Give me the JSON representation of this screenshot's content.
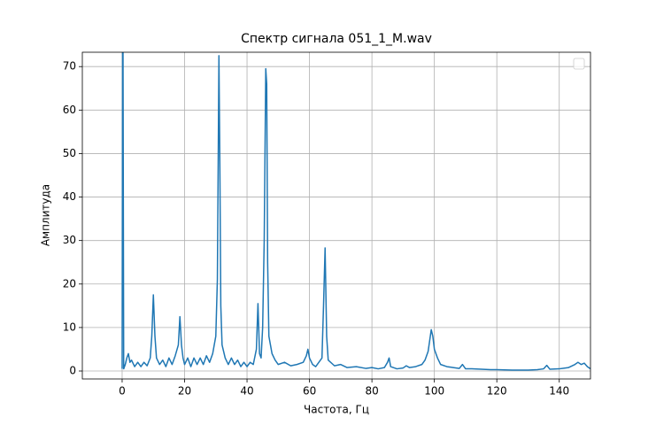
{
  "chart_data": {
    "type": "line",
    "title": "Спектр сигнала 051_1_M.wav",
    "xlabel": "Частота, Гц",
    "ylabel": "Амплитуда",
    "x": [
      0,
      0.2,
      0.5,
      1,
      1.5,
      2,
      2.5,
      3,
      4,
      5,
      6,
      7,
      8,
      9,
      9.5,
      10,
      10.5,
      11,
      12,
      13,
      14,
      15,
      16,
      17,
      18,
      18.5,
      19,
      19.5,
      20,
      21,
      22,
      23,
      24,
      25,
      26,
      27,
      28,
      29,
      30,
      30.5,
      31,
      31.3,
      31.6,
      32,
      33,
      34,
      35,
      36,
      37,
      38,
      39,
      40,
      41,
      42,
      43,
      43.5,
      44,
      44.5,
      45,
      45.5,
      46,
      46.3,
      46.6,
      47,
      48,
      49,
      50,
      52,
      54,
      56,
      58,
      59,
      59.5,
      60,
      61,
      62,
      64,
      64.5,
      65,
      65.5,
      66,
      68,
      70,
      72,
      75,
      78,
      80,
      82,
      84,
      85,
      85.5,
      86,
      88,
      90,
      91,
      92,
      94,
      96,
      97,
      98,
      99,
      99.5,
      100,
      101,
      102,
      104,
      106,
      108,
      109,
      110,
      112,
      115,
      118,
      120,
      125,
      130,
      133,
      135,
      136,
      137,
      140,
      143,
      145,
      146,
      147,
      148,
      149,
      150
    ],
    "series": [
      {
        "color": "#1f77b4",
        "values": [
          0.5,
          100,
          0.5,
          1.5,
          3,
          4,
          2,
          2.5,
          1,
          2,
          1,
          2,
          1.2,
          3,
          8,
          17.5,
          8,
          3,
          1.5,
          2.5,
          1,
          3,
          1.5,
          3.5,
          6,
          12.5,
          6,
          3,
          1.5,
          3,
          1,
          3,
          1.5,
          3,
          1.5,
          3.5,
          2,
          4,
          8,
          21,
          72.5,
          47,
          15,
          6,
          3,
          1.5,
          3,
          1.5,
          2.5,
          1,
          2,
          1,
          2,
          1.5,
          5,
          15.5,
          4,
          3,
          10,
          30,
          69.5,
          66,
          25,
          8,
          4,
          2.5,
          1.5,
          2,
          1.2,
          1.5,
          2,
          3.5,
          5,
          3,
          1.5,
          1,
          3,
          15,
          28.3,
          8,
          2.5,
          1.2,
          1.5,
          0.8,
          1,
          0.6,
          0.8,
          0.5,
          0.8,
          2,
          3,
          1,
          0.5,
          0.7,
          1.2,
          0.8,
          1,
          1.5,
          2.5,
          4.5,
          9.5,
          8,
          5,
          3,
          1.5,
          1,
          0.8,
          0.6,
          1.5,
          0.5,
          0.5,
          0.4,
          0.3,
          0.3,
          0.2,
          0.2,
          0.3,
          0.5,
          1.3,
          0.4,
          0.5,
          0.8,
          1.5,
          2,
          1.5,
          1.8,
          1,
          0.5
        ]
      }
    ],
    "xlim": [
      -12.75,
      150
    ],
    "ylim": [
      -1.83,
      73.3
    ],
    "xticks": [
      0,
      20,
      40,
      60,
      80,
      100,
      120,
      140
    ],
    "yticks": [
      0,
      10,
      20,
      30,
      40,
      50,
      60,
      70
    ],
    "grid": true,
    "legend": "upper right"
  }
}
